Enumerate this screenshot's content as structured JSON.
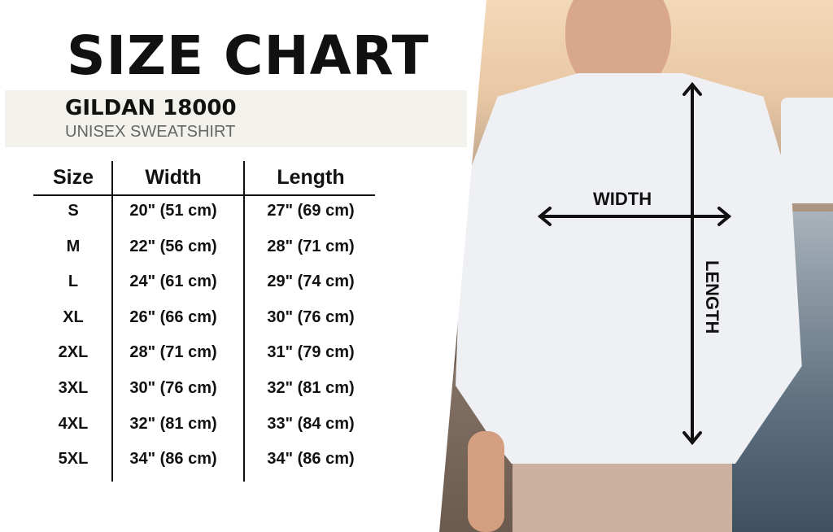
{
  "title": "SIZE CHART",
  "product": {
    "brand": "GILDAN 18000",
    "type": "UNISEX SWEATSHIRT"
  },
  "table": {
    "headers": [
      "Size",
      "Width",
      "Length"
    ],
    "rows": [
      [
        "S",
        "20\" (51 cm)",
        "27\" (69 cm)"
      ],
      [
        "M",
        "22\" (56 cm)",
        "28\" (71 cm)"
      ],
      [
        "L",
        "24\" (61 cm)",
        "29\" (74 cm)"
      ],
      [
        "XL",
        "26\" (66 cm)",
        "30\" (76 cm)"
      ],
      [
        "2XL",
        "28\" (71 cm)",
        "31\" (79 cm)"
      ],
      [
        "3XL",
        "30\" (76 cm)",
        "32\" (81 cm)"
      ],
      [
        "4XL",
        "32\" (81 cm)",
        "33\" (84 cm)"
      ],
      [
        "5XL",
        "34\" (86 cm)",
        "34\" (86 cm)"
      ]
    ]
  },
  "diagram": {
    "width_label": "WIDTH",
    "length_label": "LENGTH"
  }
}
